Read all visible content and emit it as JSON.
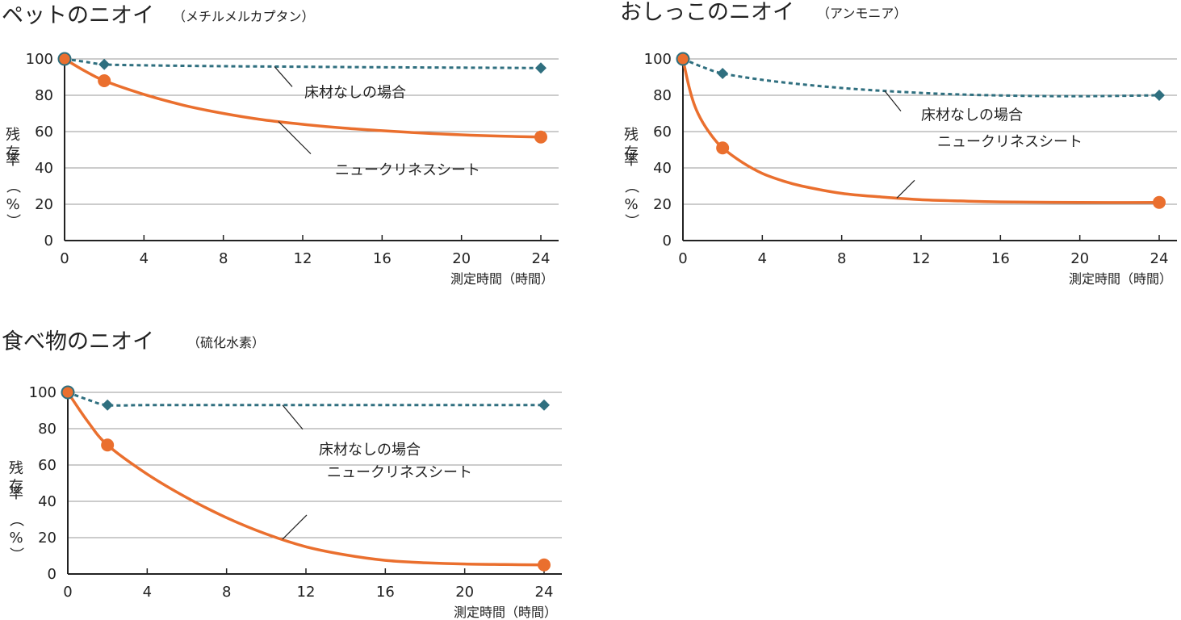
{
  "chart_data": [
    {
      "type": "line",
      "title": "ペットのニオイ",
      "subtitle": "（メチルメルカプタン）",
      "xlabel": "測定時間（時間）",
      "ylabel": [
        "残",
        "存",
        "率",
        "（",
        "%",
        "）"
      ],
      "xticks": [
        0,
        4,
        8,
        12,
        16,
        20,
        24
      ],
      "yticks": [
        0,
        20,
        40,
        60,
        80,
        100
      ],
      "xlim": [
        0,
        24
      ],
      "ylim": [
        0,
        100
      ],
      "grid": true,
      "series": [
        {
          "name": "床材なしの場合",
          "style": "dotted",
          "marker": "diamond",
          "color": "#2f6f7f",
          "x": [
            0,
            2,
            24
          ],
          "values": [
            100,
            97,
            95
          ],
          "curve": [
            [
              0,
              100
            ],
            [
              1,
              98.5
            ],
            [
              2,
              97
            ],
            [
              4,
              96.5
            ],
            [
              8,
              96
            ],
            [
              12,
              95.7
            ],
            [
              16,
              95.4
            ],
            [
              20,
              95.2
            ],
            [
              24,
              95
            ]
          ]
        },
        {
          "name": "ニュークリネスシート",
          "style": "solid",
          "marker": "circle",
          "color": "#ea6f2e",
          "x": [
            0,
            2,
            24
          ],
          "values": [
            100,
            88,
            57
          ],
          "curve": [
            [
              0,
              100
            ],
            [
              1,
              93.5
            ],
            [
              2,
              88
            ],
            [
              4,
              80.5
            ],
            [
              6,
              74.5
            ],
            [
              8,
              70
            ],
            [
              10,
              66.5
            ],
            [
              12,
              64
            ],
            [
              14,
              62
            ],
            [
              16,
              60.5
            ],
            [
              18,
              59.2
            ],
            [
              20,
              58.2
            ],
            [
              22,
              57.5
            ],
            [
              24,
              57
            ]
          ]
        }
      ]
    },
    {
      "type": "line",
      "title": "おしっこのニオイ",
      "subtitle": "（アンモニア）",
      "xlabel": "測定時間（時間）",
      "ylabel": [
        "残",
        "存",
        "率",
        "（",
        "%",
        "）"
      ],
      "xticks": [
        0,
        4,
        8,
        12,
        16,
        20,
        24
      ],
      "yticks": [
        0,
        20,
        40,
        60,
        80,
        100
      ],
      "xlim": [
        0,
        24
      ],
      "ylim": [
        0,
        100
      ],
      "grid": true,
      "series": [
        {
          "name": "床材なしの場合",
          "style": "dotted",
          "marker": "diamond",
          "color": "#2f6f7f",
          "x": [
            0,
            2,
            24
          ],
          "values": [
            100,
            92,
            80
          ],
          "curve": [
            [
              0,
              100
            ],
            [
              1,
              95.5
            ],
            [
              2,
              92
            ],
            [
              4,
              88.5
            ],
            [
              6,
              86
            ],
            [
              8,
              84
            ],
            [
              10,
              82.5
            ],
            [
              12,
              81.3
            ],
            [
              14,
              80.4
            ],
            [
              16,
              79.9
            ],
            [
              18,
              79.6
            ],
            [
              20,
              79.5
            ],
            [
              22,
              79.7
            ],
            [
              24,
              80
            ]
          ]
        },
        {
          "name": "ニュークリネスシート",
          "style": "solid",
          "marker": "circle",
          "color": "#ea6f2e",
          "x": [
            0,
            2,
            24
          ],
          "values": [
            100,
            51,
            21
          ],
          "curve": [
            [
              0,
              100
            ],
            [
              0.3,
              85
            ],
            [
              0.6,
              74
            ],
            [
              1,
              65
            ],
            [
              1.5,
              57
            ],
            [
              2,
              51
            ],
            [
              3,
              43
            ],
            [
              4,
              37
            ],
            [
              5,
              33
            ],
            [
              6,
              30
            ],
            [
              8,
              26
            ],
            [
              10,
              24
            ],
            [
              12,
              22.5
            ],
            [
              14,
              21.8
            ],
            [
              16,
              21.3
            ],
            [
              20,
              21
            ],
            [
              24,
              21
            ]
          ]
        }
      ]
    },
    {
      "type": "line",
      "title": "食べ物のニオイ",
      "subtitle": "（硫化水素）",
      "xlabel": "測定時間（時間）",
      "ylabel": [
        "残",
        "存",
        "率",
        "（",
        "%",
        "）"
      ],
      "xticks": [
        0,
        4,
        8,
        12,
        16,
        20,
        24
      ],
      "yticks": [
        0,
        20,
        40,
        60,
        80,
        100
      ],
      "xlim": [
        0,
        24
      ],
      "ylim": [
        0,
        100
      ],
      "grid": true,
      "series": [
        {
          "name": "床材なしの場合",
          "style": "dotted",
          "marker": "diamond",
          "color": "#2f6f7f",
          "x": [
            0,
            2,
            24
          ],
          "values": [
            100,
            93,
            93
          ],
          "curve": [
            [
              0,
              100
            ],
            [
              1,
              96
            ],
            [
              2,
              93
            ],
            [
              4,
              93
            ],
            [
              8,
              93
            ],
            [
              12,
              93
            ],
            [
              16,
              93
            ],
            [
              20,
              93
            ],
            [
              24,
              93
            ]
          ]
        },
        {
          "name": "ニュークリネスシート",
          "style": "solid",
          "marker": "circle",
          "color": "#ea6f2e",
          "x": [
            0,
            2,
            24
          ],
          "values": [
            100,
            71,
            5
          ],
          "curve": [
            [
              0,
              100
            ],
            [
              1,
              84
            ],
            [
              2,
              71
            ],
            [
              4,
              55
            ],
            [
              6,
              42
            ],
            [
              8,
              31
            ],
            [
              10,
              22
            ],
            [
              12,
              15
            ],
            [
              14,
              10.5
            ],
            [
              16,
              7.5
            ],
            [
              18,
              6.2
            ],
            [
              20,
              5.5
            ],
            [
              22,
              5.2
            ],
            [
              24,
              5
            ]
          ]
        }
      ]
    }
  ]
}
